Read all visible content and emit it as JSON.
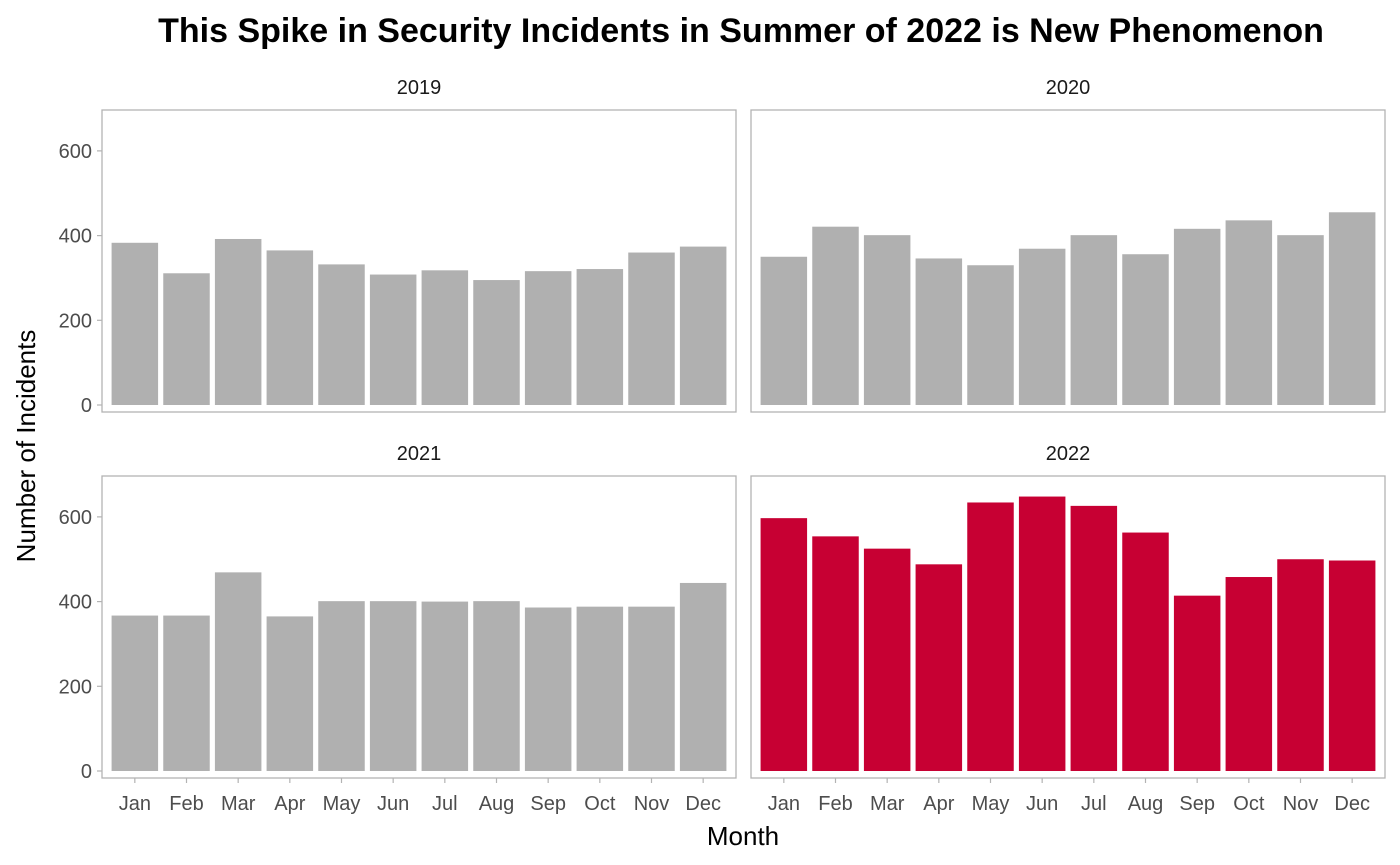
{
  "chart_data": {
    "type": "bar",
    "title": "This Spike in Security Incidents in Summer of 2022 is New Phenomenon",
    "xlabel": "Month",
    "ylabel": "Number of Incidents",
    "categories": [
      "Jan",
      "Feb",
      "Mar",
      "Apr",
      "May",
      "Jun",
      "Jul",
      "Aug",
      "Sep",
      "Oct",
      "Nov",
      "Dec"
    ],
    "ylim": [
      0,
      680
    ],
    "yticks": [
      0,
      200,
      400,
      600
    ],
    "grid": false,
    "facets": [
      {
        "name": "2019",
        "color": "#b0b0b0",
        "values": [
          383,
          311,
          392,
          365,
          332,
          308,
          318,
          295,
          316,
          321,
          360,
          374
        ]
      },
      {
        "name": "2020",
        "color": "#b0b0b0",
        "values": [
          350,
          421,
          401,
          346,
          330,
          369,
          401,
          356,
          416,
          436,
          401,
          455
        ]
      },
      {
        "name": "2021",
        "color": "#b0b0b0",
        "values": [
          367,
          367,
          469,
          365,
          401,
          401,
          400,
          401,
          386,
          388,
          388,
          444
        ]
      },
      {
        "name": "2022",
        "color": "#c70033",
        "values": [
          597,
          554,
          525,
          488,
          634,
          648,
          626,
          563,
          414,
          458,
          500,
          497
        ]
      }
    ]
  }
}
